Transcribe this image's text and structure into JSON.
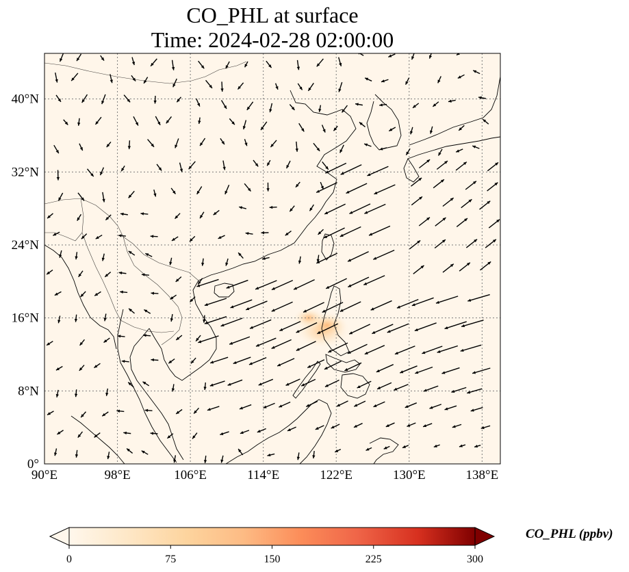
{
  "title": "CO_PHL at surface",
  "time_label": "Time: 2024-02-28 02:00:00",
  "map": {
    "lon_range": [
      90,
      140
    ],
    "lat_range": [
      0,
      45
    ],
    "lon_ticks": [
      90,
      98,
      106,
      114,
      122,
      130,
      138
    ],
    "lon_tick_labels": [
      "90°E",
      "98°E",
      "106°E",
      "114°E",
      "122°E",
      "130°E",
      "138°E"
    ],
    "lat_ticks": [
      0,
      8,
      16,
      24,
      32,
      40
    ],
    "lat_tick_labels": [
      "0°",
      "8°N",
      "16°N",
      "24°N",
      "32°N",
      "40°N"
    ],
    "gridlines": true,
    "background_color": "#fff6ea",
    "coastline_color": "#000000",
    "field_hotspots": [
      {
        "lon": 120.5,
        "lat": 14.6,
        "value": 90
      },
      {
        "lon": 121.0,
        "lat": 15.2,
        "value": 60
      },
      {
        "lon": 119.0,
        "lat": 16.0,
        "value": 35
      }
    ],
    "wind_vector_color": "#000000"
  },
  "colorbar": {
    "label": "CO_PHL (ppbv)",
    "vmin": 0,
    "vmax": 300,
    "ticks": [
      0,
      75,
      150,
      225,
      300
    ],
    "tick_labels": [
      "0",
      "75",
      "150",
      "225",
      "300"
    ],
    "colormap": "OrRd",
    "extend": "both"
  }
}
